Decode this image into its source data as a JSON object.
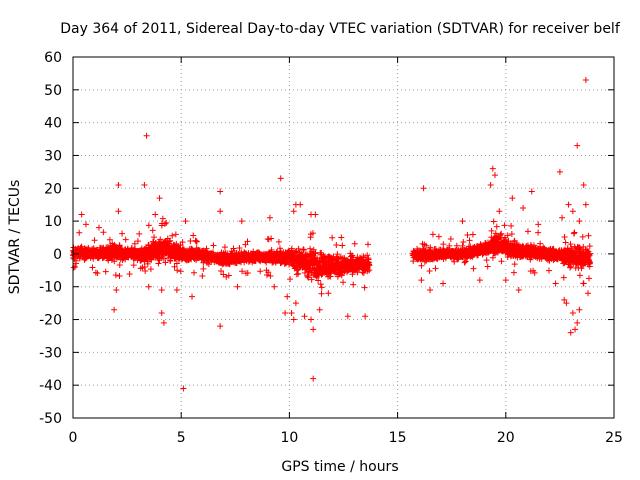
{
  "chart_data": {
    "type": "scatter",
    "title": "Day 364 of 2011, Sidereal Day-to-day VTEC variation (SDTVAR) for receiver belf",
    "xlabel": "GPS time / hours",
    "ylabel": "SDTVAR / TECUs",
    "xlim": [
      0,
      25
    ],
    "ylim": [
      -50,
      60
    ],
    "xticks": [
      0,
      5,
      10,
      15,
      20,
      25
    ],
    "yticks": [
      -50,
      -40,
      -30,
      -20,
      -10,
      0,
      10,
      20,
      30,
      40,
      50,
      60
    ],
    "grid": true,
    "marker": "+",
    "series_color": "#ff0000",
    "data_gap_hours": [
      13.7,
      15.7
    ],
    "band_envelope": [
      {
        "x": 0.0,
        "low": -2,
        "high": 3
      },
      {
        "x": 1.0,
        "low": -2,
        "high": 2
      },
      {
        "x": 2.0,
        "low": -3,
        "high": 4
      },
      {
        "x": 3.0,
        "low": -2,
        "high": 2
      },
      {
        "x": 3.5,
        "low": -4,
        "high": 5
      },
      {
        "x": 4.2,
        "low": -4,
        "high": 7
      },
      {
        "x": 5.0,
        "low": -3,
        "high": 3
      },
      {
        "x": 6.0,
        "low": -3,
        "high": 2
      },
      {
        "x": 7.0,
        "low": -4,
        "high": 1
      },
      {
        "x": 8.0,
        "low": -3,
        "high": 1
      },
      {
        "x": 9.0,
        "low": -3,
        "high": 1
      },
      {
        "x": 10.0,
        "low": -4,
        "high": 2
      },
      {
        "x": 11.0,
        "low": -9,
        "high": 3
      },
      {
        "x": 12.0,
        "low": -8,
        "high": 1
      },
      {
        "x": 13.0,
        "low": -7,
        "high": 0
      },
      {
        "x": 13.7,
        "low": -6,
        "high": 0
      },
      {
        "x": 15.7,
        "low": -3,
        "high": 2
      },
      {
        "x": 17.0,
        "low": -2,
        "high": 2
      },
      {
        "x": 18.0,
        "low": -2,
        "high": 2
      },
      {
        "x": 19.0,
        "low": -1,
        "high": 4
      },
      {
        "x": 19.5,
        "low": -1,
        "high": 7
      },
      {
        "x": 20.5,
        "low": -2,
        "high": 4
      },
      {
        "x": 21.5,
        "low": -2,
        "high": 3
      },
      {
        "x": 22.5,
        "low": -3,
        "high": 2
      },
      {
        "x": 23.3,
        "low": -6,
        "high": 4
      },
      {
        "x": 23.9,
        "low": -5,
        "high": 2
      }
    ],
    "outliers": [
      [
        3.4,
        36
      ],
      [
        23.7,
        53
      ],
      [
        23.3,
        33
      ],
      [
        9.6,
        23
      ],
      [
        19.4,
        26
      ],
      [
        19.5,
        24
      ],
      [
        19.3,
        21
      ],
      [
        21.2,
        19
      ],
      [
        22.5,
        25
      ],
      [
        2.1,
        21
      ],
      [
        3.3,
        21
      ],
      [
        6.8,
        19
      ],
      [
        16.2,
        20
      ],
      [
        20.3,
        17
      ],
      [
        23.6,
        21
      ],
      [
        10.3,
        15
      ],
      [
        10.5,
        15
      ],
      [
        4.0,
        17
      ],
      [
        0.4,
        12
      ],
      [
        0.6,
        9
      ],
      [
        1.2,
        8
      ],
      [
        2.1,
        13
      ],
      [
        3.8,
        12
      ],
      [
        5.2,
        10
      ],
      [
        6.8,
        13
      ],
      [
        7.8,
        10
      ],
      [
        9.1,
        11
      ],
      [
        10.2,
        13
      ],
      [
        11.0,
        12
      ],
      [
        11.2,
        12
      ],
      [
        12.4,
        5
      ],
      [
        18.0,
        10
      ],
      [
        19.7,
        13
      ],
      [
        20.8,
        14
      ],
      [
        21.5,
        9
      ],
      [
        22.6,
        11
      ],
      [
        22.9,
        15
      ],
      [
        23.1,
        13
      ],
      [
        23.4,
        10
      ],
      [
        23.7,
        15
      ],
      [
        1.9,
        -17
      ],
      [
        2.0,
        -11
      ],
      [
        3.5,
        -10
      ],
      [
        4.1,
        -11
      ],
      [
        4.2,
        -21
      ],
      [
        4.1,
        -18
      ],
      [
        4.8,
        -11
      ],
      [
        5.1,
        -41
      ],
      [
        5.5,
        -13
      ],
      [
        6.8,
        -22
      ],
      [
        7.6,
        -10
      ],
      [
        9.3,
        -10
      ],
      [
        9.8,
        -18
      ],
      [
        9.9,
        -13
      ],
      [
        10.1,
        -18
      ],
      [
        10.2,
        -20
      ],
      [
        10.3,
        -15
      ],
      [
        10.7,
        -19
      ],
      [
        11.1,
        -38
      ],
      [
        11.1,
        -23
      ],
      [
        11.0,
        -20
      ],
      [
        11.4,
        -17
      ],
      [
        11.8,
        -12
      ],
      [
        12.7,
        -19
      ],
      [
        13.5,
        -19
      ],
      [
        16.1,
        -8
      ],
      [
        16.5,
        -11
      ],
      [
        17.1,
        -9
      ],
      [
        18.8,
        -8
      ],
      [
        20.0,
        -8
      ],
      [
        20.6,
        -11
      ],
      [
        22.3,
        -9
      ],
      [
        22.7,
        -14
      ],
      [
        22.8,
        -15
      ],
      [
        23.0,
        -24
      ],
      [
        23.2,
        -23
      ],
      [
        23.3,
        -21
      ],
      [
        23.1,
        -18
      ],
      [
        23.4,
        -17
      ],
      [
        23.6,
        -9
      ],
      [
        23.8,
        -12
      ]
    ]
  }
}
